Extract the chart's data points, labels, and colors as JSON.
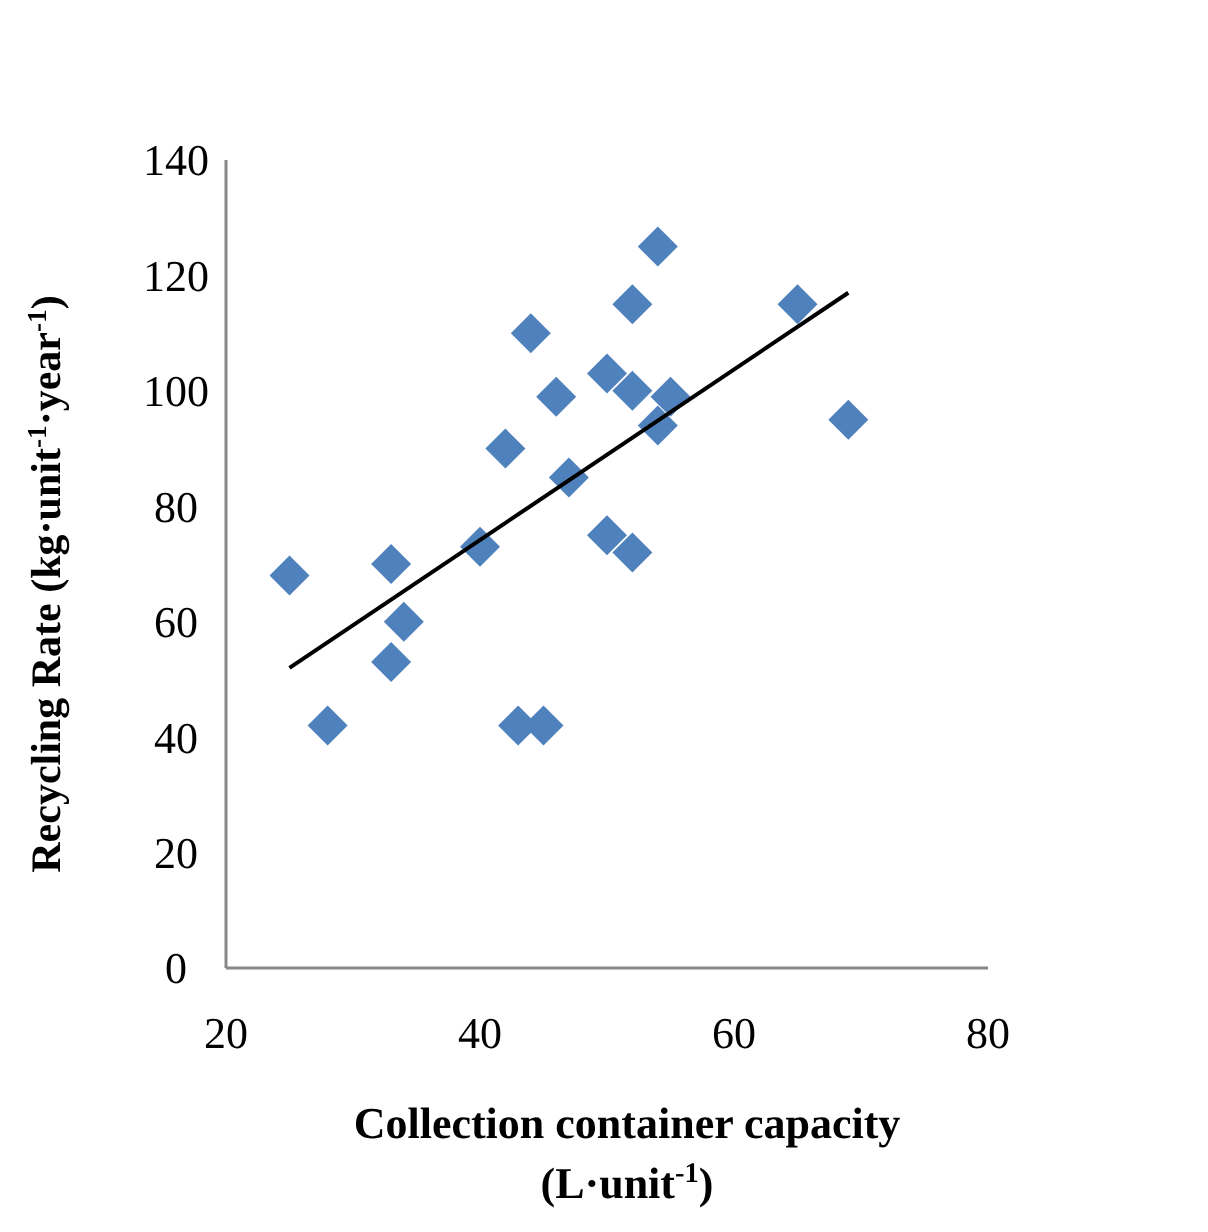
{
  "chart_data": {
    "type": "scatter",
    "xlabel": "Collection container capacity\n(L·unit$^{-1}$)",
    "ylabel": "Recycling Rate (kg·unit$^{-1}$·year$^{-1}$)",
    "xlim": [
      20,
      80
    ],
    "xticks": [
      20,
      40,
      60,
      80
    ],
    "ylim": [
      0,
      140
    ],
    "yticks": [
      0,
      20,
      40,
      60,
      80,
      100,
      120,
      140
    ],
    "grid": false,
    "marker": "diamond",
    "series": [
      {
        "color": "#4f81bd",
        "x": [
          25,
          28,
          33,
          33,
          34,
          40,
          42,
          43,
          44,
          45,
          46,
          47,
          50,
          50,
          52,
          52,
          52,
          54,
          54,
          55,
          65,
          69
        ],
        "values": [
          68,
          42,
          70,
          53,
          60,
          73,
          90,
          42,
          110,
          42,
          99,
          85,
          103,
          75,
          115,
          100,
          72,
          125,
          94,
          99,
          115,
          95
        ]
      },
      {
        "type": "line",
        "color": "#000000",
        "marker": "none",
        "line_style": "solid",
        "x": [
          25,
          69
        ],
        "values": [
          52,
          117
        ]
      }
    ]
  }
}
